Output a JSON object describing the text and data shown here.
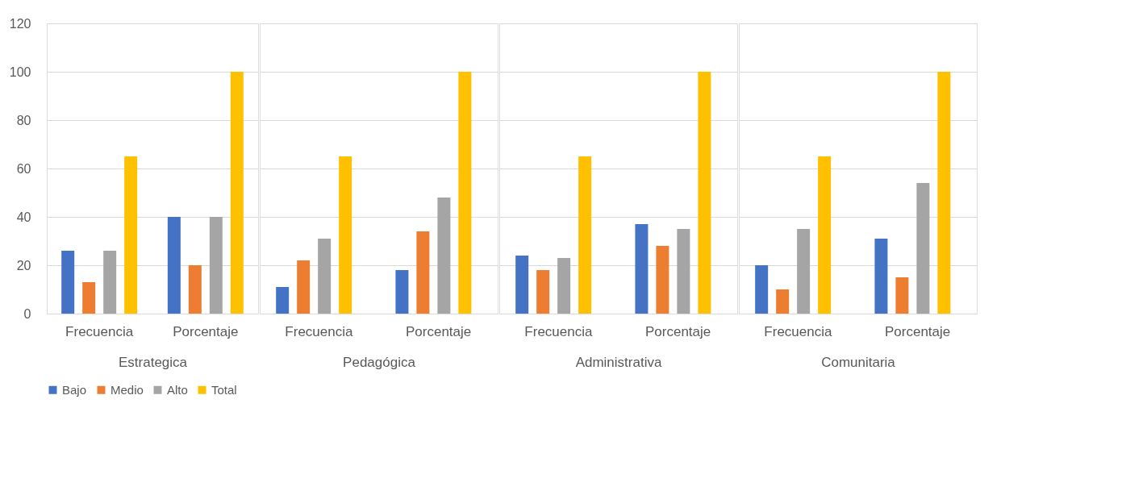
{
  "chart_data": [
    {
      "type": "bar",
      "xlabel": "Estrategica",
      "categories": [
        "Frecuencia",
        "Porcentaje"
      ],
      "ylim": [
        0,
        120
      ],
      "yticks": [
        0,
        20,
        40,
        60,
        80,
        100,
        120
      ],
      "grid": "y",
      "legend": "bottom",
      "series": [
        {
          "name": "Bajo",
          "color": "#4472c4",
          "values": [
            26,
            40
          ]
        },
        {
          "name": "Medio",
          "color": "#ed7d31",
          "values": [
            13,
            20
          ]
        },
        {
          "name": "Alto",
          "color": "#a5a5a5",
          "values": [
            26,
            40
          ]
        },
        {
          "name": "Total",
          "color": "#ffc000",
          "values": [
            65,
            100
          ]
        }
      ]
    },
    {
      "type": "bar",
      "xlabel": "Pedagógica",
      "categories": [
        "Frecuencia",
        "Porcentaje"
      ],
      "ylim": [
        0,
        120
      ],
      "yticks": [
        0,
        20,
        40,
        60,
        80,
        100,
        120
      ],
      "grid": "y",
      "tick_labels": "x",
      "series": [
        {
          "name": "Bajo",
          "color": "#4472c4",
          "values": [
            11,
            18
          ]
        },
        {
          "name": "Medio",
          "color": "#ed7d31",
          "values": [
            22,
            34
          ]
        },
        {
          "name": "Alto",
          "color": "#a5a5a5",
          "values": [
            31,
            48
          ]
        },
        {
          "name": "Total",
          "color": "#ffc000",
          "values": [
            65,
            100
          ]
        }
      ]
    },
    {
      "type": "bar",
      "xlabel": "Administrativa",
      "categories": [
        "Frecuencia",
        "Porcentaje"
      ],
      "ylim": [
        0,
        120
      ],
      "yticks": [
        0,
        20,
        40,
        60,
        80,
        100,
        120
      ],
      "grid": "y",
      "tick_labels": "x",
      "series": [
        {
          "name": "Bajo",
          "color": "#4472c4",
          "values": [
            24,
            37
          ]
        },
        {
          "name": "Medio",
          "color": "#ed7d31",
          "values": [
            18,
            28
          ]
        },
        {
          "name": "Alto",
          "color": "#a5a5a5",
          "values": [
            23,
            35
          ]
        },
        {
          "name": "Total",
          "color": "#ffc000",
          "values": [
            65,
            100
          ]
        }
      ]
    },
    {
      "type": "bar",
      "xlabel": "Comunitaria",
      "categories": [
        "Frecuencia",
        "Porcentaje"
      ],
      "ylim": [
        0,
        120
      ],
      "yticks": [
        0,
        20,
        40,
        60,
        80,
        100,
        120
      ],
      "grid": "y",
      "tick_labels": "x",
      "series": [
        {
          "name": "Bajo",
          "color": "#4472c4",
          "values": [
            20,
            31
          ]
        },
        {
          "name": "Medio",
          "color": "#ed7d31",
          "values": [
            10,
            15
          ]
        },
        {
          "name": "Alto",
          "color": "#a5a5a5",
          "values": [
            35,
            54
          ]
        },
        {
          "name": "Total",
          "color": "#ffc000",
          "values": [
            65,
            100
          ]
        }
      ]
    }
  ]
}
